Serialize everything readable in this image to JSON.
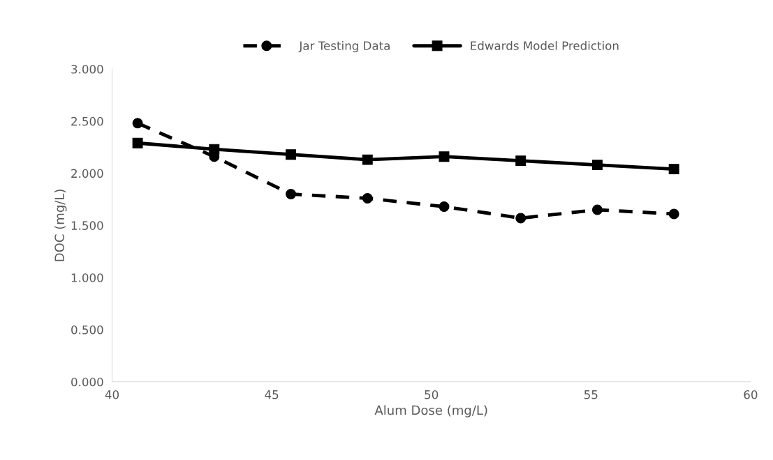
{
  "chart_data": {
    "type": "line",
    "xlabel": "Alum Dose (mg/L)",
    "ylabel": "DOC (mg/L)",
    "x": [
      40.8,
      43.2,
      45.6,
      48.0,
      50.4,
      52.8,
      55.2,
      57.6
    ],
    "series": [
      {
        "name": "Jar Testing Data",
        "color": "#000000",
        "marker": "circle",
        "line_style": "dashed",
        "values": [
          2.48,
          2.16,
          1.8,
          1.76,
          1.68,
          1.57,
          1.65,
          1.61
        ]
      },
      {
        "name": "Edwards Model Prediction",
        "color": "#000000",
        "marker": "square",
        "line_style": "solid",
        "values": [
          2.29,
          2.23,
          2.18,
          2.13,
          2.16,
          2.12,
          2.08,
          2.04
        ]
      }
    ],
    "xlim": [
      40,
      60
    ],
    "xticks": [
      40,
      45,
      50,
      55,
      60
    ],
    "ylim": [
      0,
      3
    ],
    "yticks": [
      {
        "value": 0,
        "label": "0.000"
      },
      {
        "value": 0.5,
        "label": "0.500"
      },
      {
        "value": 1,
        "label": "1.000"
      },
      {
        "value": 1.5,
        "label": "1.500"
      },
      {
        "value": 2,
        "label": "2.000"
      },
      {
        "value": 2.5,
        "label": "2.500"
      },
      {
        "value": 3,
        "label": "3.000"
      }
    ],
    "grid": false,
    "legend": "top"
  }
}
